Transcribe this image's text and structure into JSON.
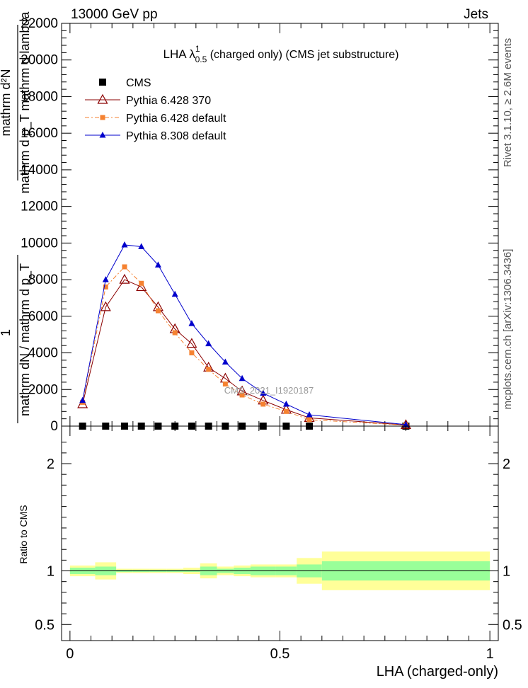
{
  "header": {
    "left": "13000 GeV pp",
    "right": "Jets"
  },
  "side_texts": {
    "rivet": "Rivet 3.1.10, ≥ 2.6M events",
    "mcplots": "mcplots.cern.ch [arXiv:1306.3436]"
  },
  "watermark": "CMS_2021_I1920187",
  "colors": {
    "cms": "#000000",
    "py6_370": "#8b0000",
    "py6_default": "#f58231",
    "py8_default": "#0000cc",
    "band_inner": "#99ff99",
    "band_outer": "#ffff99"
  },
  "chart_data": [
    {
      "type": "line",
      "title_main": "LHA λ",
      "title_sup": "1",
      "title_sub": "0.5",
      "title_rest": " (charged only) (CMS jet substructure)",
      "ylabel_lines": [
        "mathrm d²N",
        "mathrm d p_T mathrm d lambda",
        "1",
        "mathrm dN / mathrm d p_T"
      ],
      "ylim": [
        0,
        22000
      ],
      "xlim": [
        -0.02,
        1.02
      ],
      "y_ticks": [
        {
          "v": 0,
          "label": "0"
        },
        {
          "v": 2000,
          "label": "2000"
        },
        {
          "v": 4000,
          "label": "4000"
        },
        {
          "v": 6000,
          "label": "6000"
        },
        {
          "v": 8000,
          "label": "8000"
        },
        {
          "v": 10000,
          "label": "10000"
        },
        {
          "v": 12000,
          "label": "12000"
        },
        {
          "v": 14000,
          "label": "14000"
        },
        {
          "v": 16000,
          "label": "16000"
        },
        {
          "v": 18000,
          "label": "18000"
        },
        {
          "v": 20000,
          "label": "20000"
        },
        {
          "v": 22000,
          "label": "22000"
        }
      ],
      "legend": [
        {
          "key": "cms",
          "label": "CMS"
        },
        {
          "key": "py6_370",
          "label": "Pythia 6.428 370"
        },
        {
          "key": "py6_default",
          "label": "Pythia 6.428 default"
        },
        {
          "key": "py8_default",
          "label": "Pythia 8.308 default"
        }
      ],
      "x": [
        0.03,
        0.085,
        0.13,
        0.17,
        0.21,
        0.25,
        0.29,
        0.33,
        0.37,
        0.41,
        0.46,
        0.515,
        0.57,
        0.8
      ],
      "series": [
        {
          "name": "CMS",
          "key": "cms",
          "marker": "square",
          "values": [
            0,
            0,
            0,
            0,
            0,
            0,
            0,
            0,
            0,
            0,
            0,
            0,
            0,
            0
          ]
        },
        {
          "name": "Pythia 6.428 370",
          "key": "py6_370",
          "marker": "open-triangle",
          "values": [
            1200,
            6500,
            8000,
            7600,
            6500,
            5300,
            4500,
            3200,
            2600,
            1900,
            1400,
            900,
            450,
            60
          ]
        },
        {
          "name": "Pythia 6.428 default",
          "key": "py6_default",
          "marker": "small-square",
          "values": [
            1300,
            7600,
            8700,
            7800,
            6300,
            5100,
            4000,
            3100,
            2300,
            1700,
            1200,
            800,
            350,
            50
          ]
        },
        {
          "name": "Pythia 8.308 default",
          "key": "py8_default",
          "marker": "filled-triangle",
          "values": [
            1400,
            8000,
            9900,
            9800,
            8800,
            7200,
            5600,
            4500,
            3500,
            2600,
            1800,
            1200,
            620,
            80
          ]
        }
      ]
    },
    {
      "type": "area",
      "ylabel": "Ratio to CMS",
      "ylim": [
        0.35,
        2.35
      ],
      "y_ticks": [
        {
          "v": 0.5,
          "label": "0.5"
        },
        {
          "v": 1,
          "label": "1"
        },
        {
          "v": 2,
          "label": "2"
        }
      ],
      "x_ticks": [
        {
          "v": 0,
          "label": "0"
        },
        {
          "v": 0.5,
          "label": "0.5"
        },
        {
          "v": 1,
          "label": "1"
        }
      ],
      "xlabel": "LHA (charged-only)",
      "bins": [
        {
          "x0": 0.0,
          "x1": 0.06,
          "inner": [
            0.97,
            1.03
          ],
          "outer": [
            0.95,
            1.05
          ]
        },
        {
          "x0": 0.06,
          "x1": 0.11,
          "inner": [
            0.96,
            1.04
          ],
          "outer": [
            0.92,
            1.08
          ]
        },
        {
          "x0": 0.11,
          "x1": 0.15,
          "inner": [
            0.99,
            1.01
          ],
          "outer": [
            0.98,
            1.02
          ]
        },
        {
          "x0": 0.15,
          "x1": 0.19,
          "inner": [
            0.99,
            1.01
          ],
          "outer": [
            0.98,
            1.02
          ]
        },
        {
          "x0": 0.19,
          "x1": 0.23,
          "inner": [
            0.99,
            1.01
          ],
          "outer": [
            0.98,
            1.02
          ]
        },
        {
          "x0": 0.23,
          "x1": 0.27,
          "inner": [
            0.99,
            1.01
          ],
          "outer": [
            0.98,
            1.02
          ]
        },
        {
          "x0": 0.27,
          "x1": 0.31,
          "inner": [
            0.99,
            1.01
          ],
          "outer": [
            0.97,
            1.03
          ]
        },
        {
          "x0": 0.31,
          "x1": 0.35,
          "inner": [
            0.96,
            1.04
          ],
          "outer": [
            0.93,
            1.07
          ]
        },
        {
          "x0": 0.35,
          "x1": 0.39,
          "inner": [
            0.98,
            1.02
          ],
          "outer": [
            0.96,
            1.04
          ]
        },
        {
          "x0": 0.39,
          "x1": 0.43,
          "inner": [
            0.97,
            1.03
          ],
          "outer": [
            0.95,
            1.05
          ]
        },
        {
          "x0": 0.43,
          "x1": 0.49,
          "inner": [
            0.96,
            1.04
          ],
          "outer": [
            0.94,
            1.06
          ]
        },
        {
          "x0": 0.49,
          "x1": 0.54,
          "inner": [
            0.96,
            1.04
          ],
          "outer": [
            0.94,
            1.06
          ]
        },
        {
          "x0": 0.54,
          "x1": 0.6,
          "inner": [
            0.94,
            1.06
          ],
          "outer": [
            0.88,
            1.12
          ]
        },
        {
          "x0": 0.6,
          "x1": 1.0,
          "inner": [
            0.91,
            1.09
          ],
          "outer": [
            0.82,
            1.18
          ]
        }
      ]
    }
  ]
}
